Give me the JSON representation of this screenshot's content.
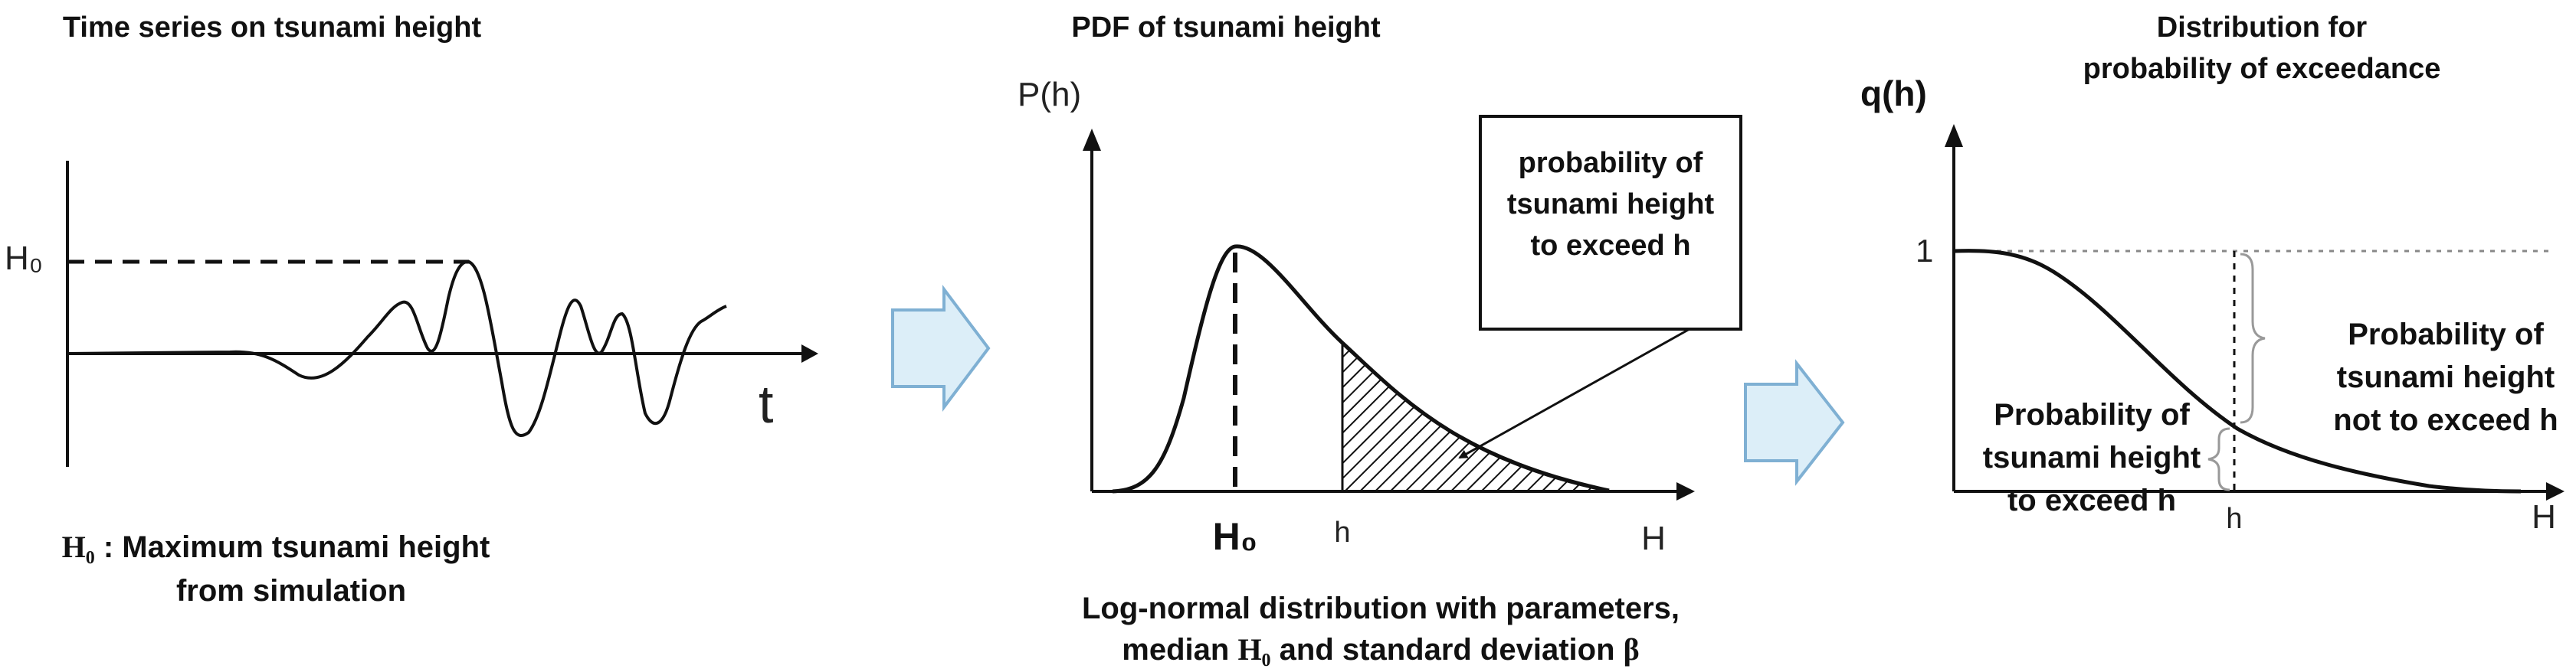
{
  "panel1": {
    "title": "Time series on tsunami height",
    "y_tick": "H₀",
    "x_axis_label": "t",
    "caption_symbol": "H₀",
    "caption_line1_rest": " : Maximum tsunami height",
    "caption_line2": "from simulation"
  },
  "panel2": {
    "title": "PDF of tsunami height",
    "y_axis_label": "P(h)",
    "x_axis_label": "H",
    "mode_label": "H₀",
    "h_label": "h",
    "callout": [
      "probability of",
      "tsunami height",
      "to exceed h"
    ],
    "caption_line1": "Log-normal distribution with parameters,",
    "caption_line2_a": "median ",
    "caption_line2_sym": "H₀",
    "caption_line2_b": " and standard deviation ",
    "caption_line2_beta": "β"
  },
  "panel3": {
    "title_line1": "Distribution for",
    "title_line2": "probability of exceedance",
    "y_axis_label": "q(h)",
    "y_tick": "1",
    "x_axis_label": "H",
    "h_label": "h",
    "upper_label": [
      "Probability of",
      "tsunami height",
      "not to exceed h"
    ],
    "lower_label": [
      "Probability of",
      "tsunami height",
      "to exceed h"
    ]
  },
  "colors": {
    "arrow_fill": "#dceef8",
    "arrow_stroke": "#7fb0d3",
    "line": "#111111",
    "dotted": "#888888"
  }
}
